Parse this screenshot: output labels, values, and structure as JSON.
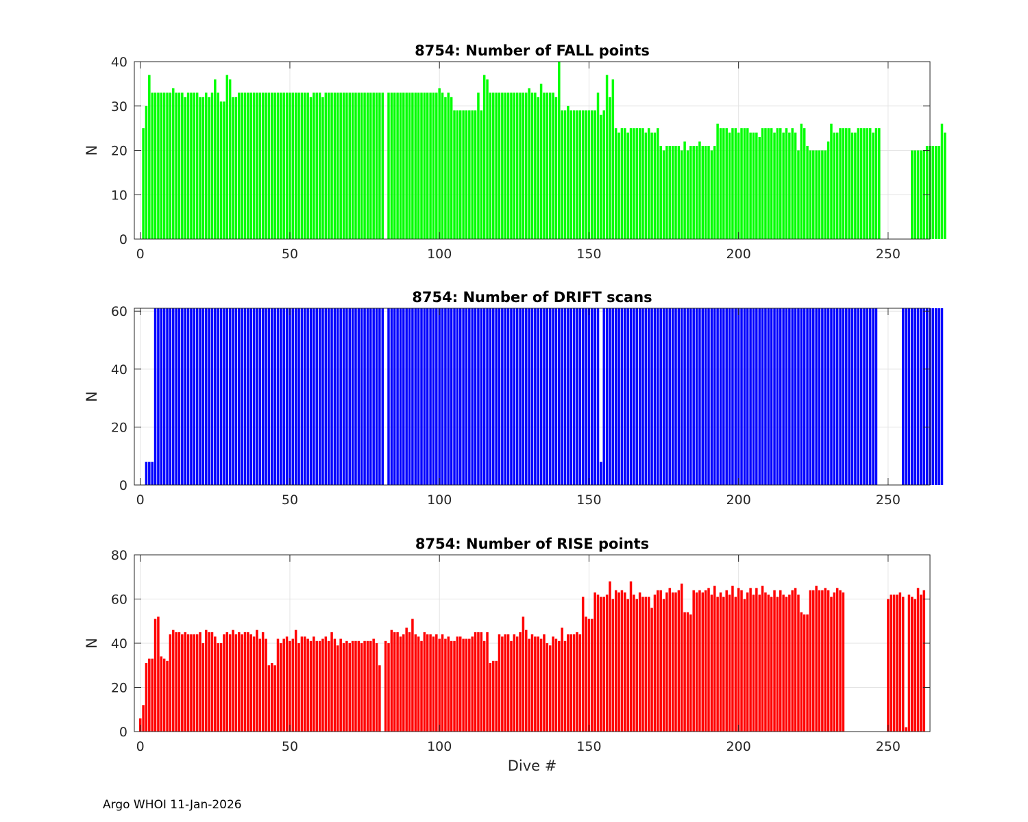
{
  "footer": "Argo WHOI 11-Jan-2026",
  "chart_data": [
    {
      "type": "bar",
      "title": "8754: Number of FALL points",
      "xlabel": "",
      "ylabel": "N",
      "color": "#00ff00",
      "xlim": [
        -2,
        264
      ],
      "ylim": [
        0,
        40
      ],
      "xticks": [
        0,
        50,
        100,
        150,
        200,
        250
      ],
      "yticks": [
        0,
        10,
        20,
        30,
        40
      ],
      "x_start": 1,
      "values": [
        25,
        30,
        37,
        33,
        33,
        33,
        33,
        33,
        33,
        33,
        34,
        33,
        33,
        33,
        32,
        33,
        33,
        33,
        33,
        32,
        32,
        33,
        32,
        33,
        36,
        33,
        31,
        31,
        37,
        36,
        32,
        32,
        33,
        33,
        33,
        33,
        33,
        33,
        33,
        33,
        33,
        33,
        33,
        33,
        33,
        33,
        33,
        33,
        33,
        33,
        33,
        33,
        33,
        33,
        33,
        33,
        32,
        33,
        33,
        33,
        32,
        33,
        33,
        33,
        33,
        33,
        33,
        33,
        33,
        33,
        33,
        33,
        33,
        33,
        33,
        33,
        33,
        33,
        33,
        33,
        33,
        null,
        33,
        33,
        33,
        33,
        33,
        33,
        33,
        33,
        33,
        33,
        33,
        33,
        33,
        33,
        33,
        33,
        33,
        34,
        33,
        32,
        33,
        32,
        29,
        29,
        29,
        29,
        29,
        29,
        29,
        29,
        33,
        29,
        37,
        36,
        33,
        33,
        33,
        33,
        33,
        33,
        33,
        33,
        33,
        33,
        33,
        33,
        33,
        34,
        33,
        33,
        32,
        35,
        33,
        33,
        33,
        33,
        32,
        40,
        29,
        29,
        30,
        29,
        29,
        29,
        29,
        29,
        29,
        29,
        29,
        29,
        33,
        28,
        29,
        37,
        32,
        36,
        25,
        24,
        25,
        25,
        24,
        25,
        25,
        25,
        25,
        25,
        24,
        25,
        24,
        24,
        25,
        21,
        20,
        21,
        21,
        21,
        21,
        21,
        20,
        22,
        20,
        21,
        21,
        21,
        22,
        21,
        21,
        21,
        20,
        21,
        26,
        25,
        25,
        25,
        24,
        25,
        25,
        24,
        25,
        25,
        25,
        24,
        24,
        24,
        23,
        25,
        25,
        25,
        25,
        24,
        25,
        25,
        24,
        25,
        24,
        25,
        24,
        20,
        26,
        25,
        21,
        20,
        20,
        20,
        20,
        20,
        20,
        22,
        26,
        24,
        24,
        25,
        25,
        25,
        25,
        24,
        24,
        25,
        25,
        25,
        25,
        25,
        24,
        25,
        25,
        null,
        null,
        null,
        null,
        null,
        null,
        null,
        null,
        null,
        null,
        20,
        20,
        20,
        20,
        20,
        21,
        21,
        21,
        21,
        21,
        26,
        24
      ]
    },
    {
      "type": "bar",
      "title": "8754: Number of DRIFT scans",
      "xlabel": "",
      "ylabel": "N",
      "color": "#0000ff",
      "xlim": [
        -2,
        264
      ],
      "ylim": [
        0,
        61
      ],
      "xticks": [
        0,
        50,
        100,
        150,
        200,
        250
      ],
      "yticks": [
        0,
        20,
        40,
        60
      ],
      "x_start": 1,
      "values": [
        0,
        8,
        8,
        8,
        61,
        61,
        61,
        61,
        61,
        61,
        61,
        61,
        61,
        61,
        61,
        61,
        61,
        61,
        61,
        61,
        61,
        61,
        61,
        61,
        61,
        61,
        61,
        61,
        61,
        61,
        61,
        61,
        61,
        61,
        61,
        61,
        61,
        61,
        61,
        61,
        61,
        61,
        61,
        61,
        61,
        61,
        61,
        61,
        61,
        61,
        61,
        61,
        61,
        61,
        61,
        61,
        61,
        61,
        61,
        61,
        61,
        61,
        61,
        61,
        61,
        61,
        61,
        61,
        61,
        61,
        61,
        61,
        61,
        61,
        61,
        61,
        61,
        61,
        61,
        61,
        61,
        null,
        61,
        61,
        61,
        61,
        61,
        61,
        61,
        61,
        61,
        61,
        61,
        61,
        61,
        61,
        61,
        61,
        61,
        61,
        61,
        61,
        61,
        61,
        61,
        61,
        61,
        61,
        61,
        61,
        61,
        61,
        61,
        61,
        61,
        61,
        61,
        61,
        61,
        61,
        61,
        61,
        61,
        61,
        61,
        61,
        61,
        61,
        61,
        61,
        61,
        61,
        61,
        61,
        61,
        61,
        61,
        61,
        61,
        61,
        61,
        61,
        61,
        61,
        61,
        61,
        61,
        61,
        61,
        61,
        61,
        61,
        61,
        8,
        61,
        61,
        61,
        61,
        61,
        61,
        61,
        61,
        61,
        61,
        61,
        61,
        61,
        61,
        61,
        61,
        61,
        61,
        61,
        61,
        61,
        61,
        61,
        61,
        61,
        61,
        61,
        61,
        61,
        61,
        61,
        61,
        61,
        61,
        61,
        61,
        61,
        61,
        61,
        61,
        61,
        61,
        61,
        61,
        61,
        61,
        61,
        61,
        61,
        61,
        61,
        61,
        61,
        61,
        61,
        61,
        61,
        61,
        61,
        61,
        61,
        61,
        61,
        61,
        61,
        61,
        61,
        61,
        61,
        61,
        61,
        61,
        61,
        61,
        61,
        61,
        61,
        61,
        61,
        61,
        61,
        61,
        61,
        61,
        61,
        61,
        61,
        61,
        61,
        61,
        61,
        61,
        null,
        null,
        null,
        null,
        null,
        null,
        null,
        null,
        61,
        61,
        61,
        61,
        61,
        61,
        61,
        61,
        61,
        61,
        61,
        61,
        61,
        61
      ]
    },
    {
      "type": "bar",
      "title": "8754: Number of RISE points",
      "xlabel": "Dive #",
      "ylabel": "N",
      "color": "#ff0000",
      "xlim": [
        -2,
        264
      ],
      "ylim": [
        0,
        80
      ],
      "xticks": [
        0,
        50,
        100,
        150,
        200,
        250
      ],
      "yticks": [
        0,
        20,
        40,
        60,
        80
      ],
      "x_start": 0,
      "values": [
        6,
        12,
        31,
        33,
        33,
        51,
        52,
        34,
        33,
        32,
        44,
        46,
        45,
        45,
        44,
        45,
        44,
        44,
        44,
        44,
        45,
        40,
        46,
        45,
        45,
        43,
        40,
        40,
        44,
        45,
        44,
        46,
        44,
        45,
        44,
        45,
        45,
        44,
        43,
        46,
        42,
        45,
        42,
        30,
        31,
        30,
        42,
        40,
        42,
        43,
        41,
        42,
        46,
        40,
        43,
        43,
        42,
        41,
        43,
        41,
        41,
        42,
        43,
        41,
        45,
        42,
        39,
        42,
        40,
        41,
        40,
        41,
        41,
        41,
        40,
        41,
        41,
        41,
        42,
        40,
        30,
        null,
        41,
        40,
        46,
        45,
        45,
        43,
        44,
        47,
        45,
        51,
        44,
        43,
        41,
        45,
        44,
        44,
        43,
        44,
        42,
        44,
        42,
        43,
        41,
        41,
        43,
        43,
        42,
        42,
        42,
        43,
        45,
        45,
        45,
        41,
        45,
        31,
        32,
        32,
        44,
        43,
        44,
        44,
        41,
        44,
        43,
        45,
        52,
        46,
        42,
        44,
        43,
        43,
        42,
        44,
        40,
        39,
        43,
        42,
        41,
        47,
        41,
        44,
        44,
        44,
        45,
        44,
        61,
        52,
        51,
        51,
        63,
        62,
        61,
        61,
        62,
        68,
        60,
        64,
        63,
        64,
        63,
        60,
        68,
        62,
        60,
        63,
        61,
        61,
        61,
        56,
        62,
        64,
        64,
        60,
        63,
        65,
        63,
        63,
        64,
        67,
        54,
        54,
        53,
        64,
        63,
        64,
        63,
        64,
        65,
        62,
        66,
        61,
        63,
        61,
        64,
        62,
        66,
        61,
        65,
        64,
        60,
        63,
        65,
        62,
        65,
        62,
        66,
        63,
        62,
        61,
        64,
        61,
        64,
        62,
        61,
        62,
        64,
        65,
        62,
        54,
        53,
        53,
        64,
        64,
        66,
        64,
        64,
        65,
        64,
        61,
        63,
        65,
        64,
        63,
        null,
        null,
        null,
        null,
        null,
        null,
        null,
        null,
        null,
        null,
        null,
        null,
        null,
        null,
        60,
        62,
        62,
        62,
        63,
        61,
        2,
        62,
        61,
        60,
        65,
        62,
        64
      ]
    }
  ]
}
